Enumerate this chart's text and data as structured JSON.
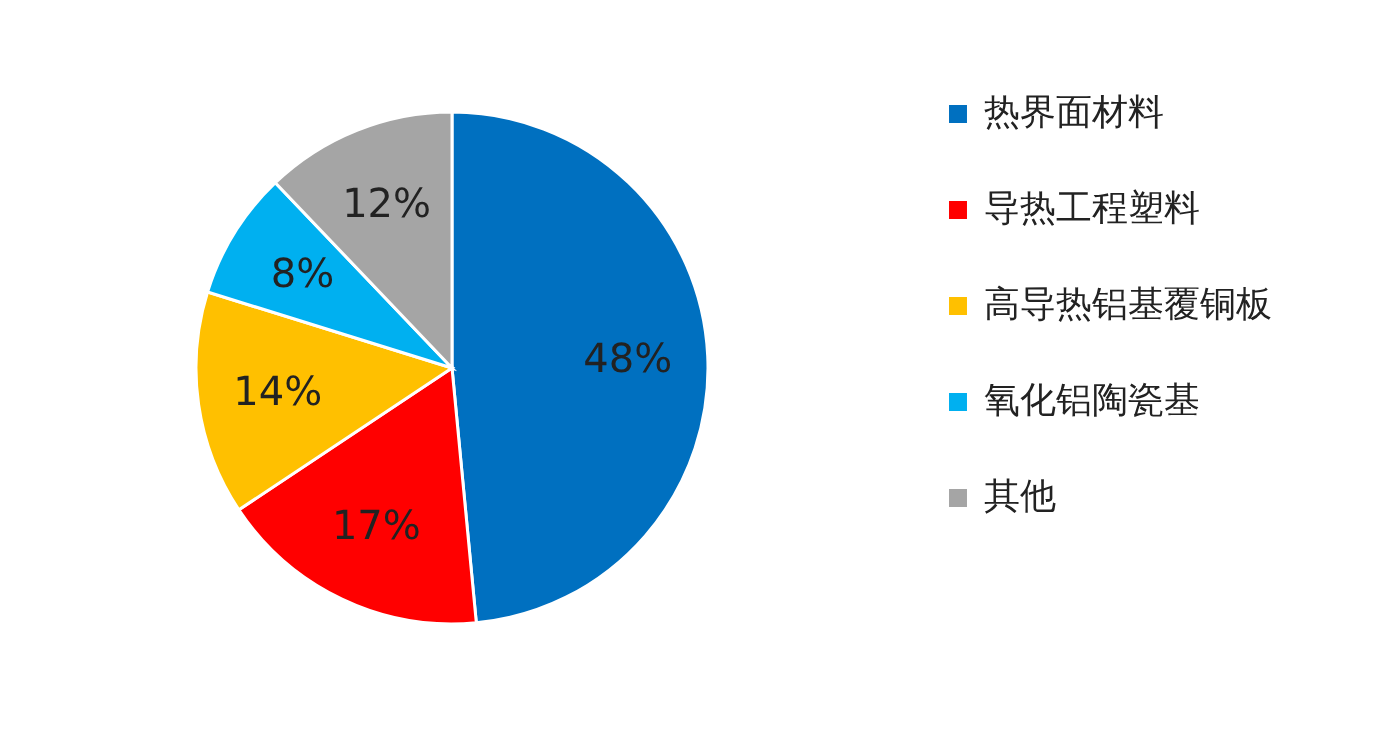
{
  "chart_data": {
    "type": "pie",
    "categories": [
      "热界面材料",
      "导热工程塑料",
      "高导热铝基覆铜板",
      "氧化铝陶瓷基",
      "其他"
    ],
    "values": [
      48,
      17,
      14,
      8,
      12
    ],
    "colors": [
      "#0070c0",
      "#ff0000",
      "#ffc000",
      "#00b0f0",
      "#a5a5a5"
    ],
    "value_labels": [
      "48%",
      "17%",
      "14%",
      "8%",
      "12%"
    ],
    "legend": "right"
  }
}
